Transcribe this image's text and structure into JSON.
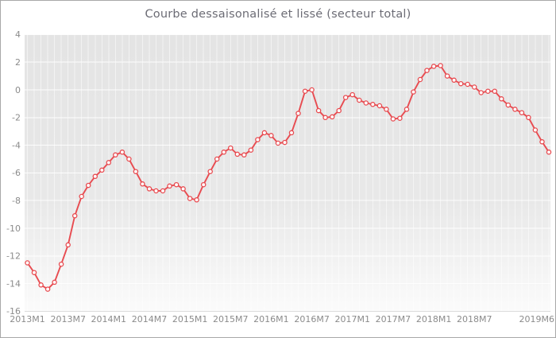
{
  "title_color": "#6c6c75",
  "colors": {
    "line": "#e84b50",
    "marker_fill": "#ffffff",
    "plot_bg_top": "#e4e4e4",
    "plot_bg_mid": "#e8e8e8",
    "plot_bg_bottom": "#fbfbfb",
    "grid": "#ffffff",
    "axis_line": "#dcdcdc",
    "tick_label": "#8b8b8b",
    "frame_border": "#a8a8a8"
  },
  "chart_data": {
    "type": "line",
    "title": "Courbe dessaisonalisé et lissé (secteur total)",
    "xlabel": "",
    "ylabel": "",
    "x_start": "2013M1",
    "x_end": "2019M6",
    "n_points": 78,
    "ylim": [
      -16,
      4
    ],
    "grid": true,
    "legend": false,
    "marker": "circle",
    "y_ticks": [
      4,
      2,
      0,
      -2,
      -4,
      -6,
      -8,
      -10,
      -12,
      -14,
      -16
    ],
    "x_ticks": [
      {
        "index": 0,
        "label": "2013M1"
      },
      {
        "index": 6,
        "label": "2013M7"
      },
      {
        "index": 12,
        "label": "2014M1"
      },
      {
        "index": 18,
        "label": "2014M7"
      },
      {
        "index": 24,
        "label": "2015M1"
      },
      {
        "index": 30,
        "label": "2015M7"
      },
      {
        "index": 36,
        "label": "2016M1"
      },
      {
        "index": 42,
        "label": "2016M7"
      },
      {
        "index": 48,
        "label": "2017M1"
      },
      {
        "index": 54,
        "label": "2017M7"
      },
      {
        "index": 60,
        "label": "2018M1"
      },
      {
        "index": 66,
        "label": "2018M7"
      },
      {
        "index": 77,
        "label": "2019M6",
        "align": "end"
      }
    ],
    "values": [
      -12.5,
      -13.2,
      -14.1,
      -14.4,
      -13.9,
      -12.6,
      -11.2,
      -9.1,
      -7.7,
      -6.9,
      -6.25,
      -5.8,
      -5.25,
      -4.7,
      -4.5,
      -5.0,
      -5.9,
      -6.8,
      -7.15,
      -7.3,
      -7.3,
      -6.95,
      -6.85,
      -7.15,
      -7.85,
      -7.95,
      -6.85,
      -5.9,
      -5.0,
      -4.5,
      -4.2,
      -4.65,
      -4.7,
      -4.35,
      -3.6,
      -3.1,
      -3.3,
      -3.85,
      -3.8,
      -3.1,
      -1.7,
      -0.1,
      0.0,
      -1.5,
      -2.0,
      -1.95,
      -1.5,
      -0.55,
      -0.35,
      -0.75,
      -0.95,
      -1.05,
      -1.15,
      -1.4,
      -2.1,
      -2.05,
      -1.4,
      -0.15,
      0.75,
      1.4,
      1.7,
      1.75,
      1.0,
      0.7,
      0.45,
      0.4,
      0.2,
      -0.2,
      -0.1,
      -0.1,
      -0.65,
      -1.1,
      -1.4,
      -1.65,
      -2.0,
      -2.9,
      -3.75,
      -4.5
    ]
  }
}
